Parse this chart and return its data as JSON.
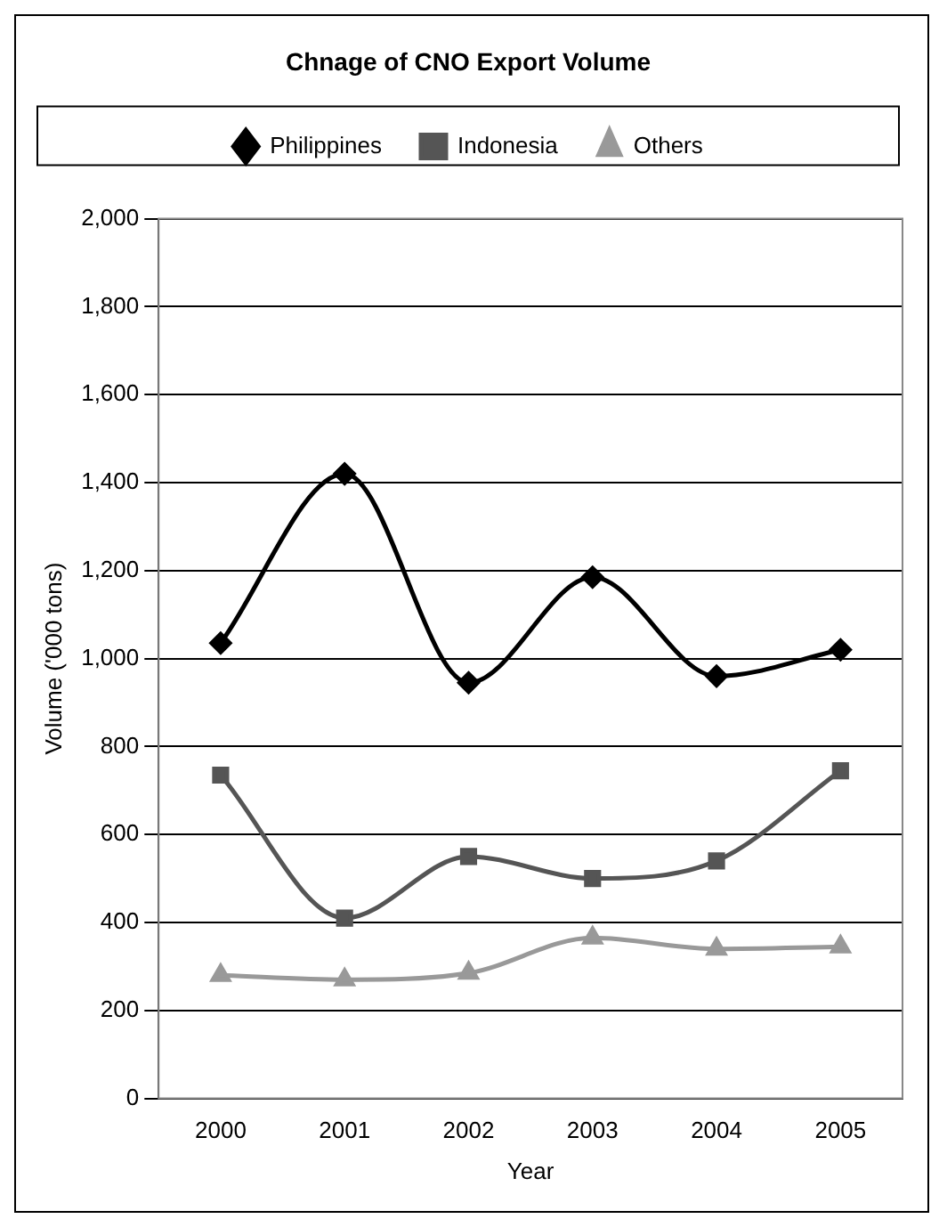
{
  "chart_data": {
    "type": "line",
    "title": "Chnage of CNO Export Volume",
    "xlabel": "Year",
    "ylabel": "Volume ('000 tons)",
    "categories": [
      "2000",
      "2001",
      "2002",
      "2003",
      "2004",
      "2005"
    ],
    "series": [
      {
        "name": "Philippines",
        "color": "#000000",
        "marker": "diamond",
        "values": [
          1035,
          1420,
          945,
          1185,
          960,
          1020
        ]
      },
      {
        "name": "Indonesia",
        "color": "#555555",
        "marker": "square",
        "values": [
          735,
          410,
          550,
          500,
          540,
          745
        ]
      },
      {
        "name": "Others",
        "color": "#999999",
        "marker": "triangle",
        "values": [
          280,
          270,
          285,
          365,
          340,
          345
        ]
      }
    ],
    "ylim": [
      0,
      2000
    ],
    "yticks": [
      {
        "value": 0,
        "label": "0"
      },
      {
        "value": 200,
        "label": "200"
      },
      {
        "value": 400,
        "label": "400"
      },
      {
        "value": 600,
        "label": "600"
      },
      {
        "value": 800,
        "label": "800"
      },
      {
        "value": 1000,
        "label": "1,000"
      },
      {
        "value": 1200,
        "label": "1,200"
      },
      {
        "value": 1400,
        "label": "1,400"
      },
      {
        "value": 1600,
        "label": "1,600"
      },
      {
        "value": 1800,
        "label": "1,800"
      },
      {
        "value": 2000,
        "label": "2,000"
      }
    ],
    "grid": "y",
    "legend": "top",
    "line_style": "solid"
  }
}
